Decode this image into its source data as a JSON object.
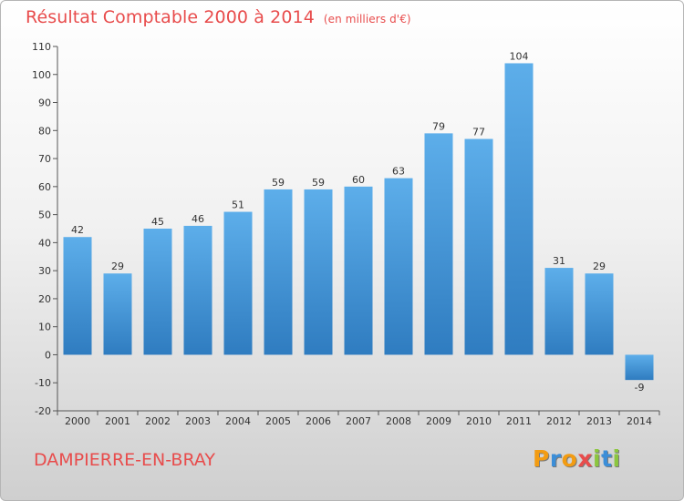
{
  "title": "Résultat Comptable 2000 à 2014",
  "subtitle": "(en milliers d'€)",
  "city": "DAMPIERRE-EN-BRAY",
  "logo": {
    "text": "Proxiti",
    "letters": [
      "P",
      "r",
      "o",
      "x",
      "i",
      "t",
      "i"
    ],
    "colors": [
      "#f39c12",
      "#3b8ed8",
      "#f39c12",
      "#e84c4c",
      "#8cc63f",
      "#3b8ed8",
      "#8cc63f"
    ]
  },
  "colors": {
    "title": "#e84c4c",
    "bar_top": "#5daeea",
    "bar_bottom": "#2f7cc0"
  },
  "chart_data": {
    "type": "bar",
    "title": "Résultat Comptable 2000 à 2014",
    "subtitle": "(en milliers d'€)",
    "xlabel": "",
    "ylabel": "",
    "categories": [
      "2000",
      "2001",
      "2002",
      "2003",
      "2004",
      "2005",
      "2006",
      "2007",
      "2008",
      "2009",
      "2010",
      "2011",
      "2012",
      "2013",
      "2014"
    ],
    "values": [
      42,
      29,
      45,
      46,
      51,
      59,
      59,
      60,
      63,
      79,
      77,
      104,
      31,
      29,
      -9
    ],
    "ylim": [
      -20,
      110
    ],
    "yticks": [
      -20,
      -10,
      0,
      10,
      20,
      30,
      40,
      50,
      60,
      70,
      80,
      90,
      100,
      110
    ],
    "grid": false
  }
}
